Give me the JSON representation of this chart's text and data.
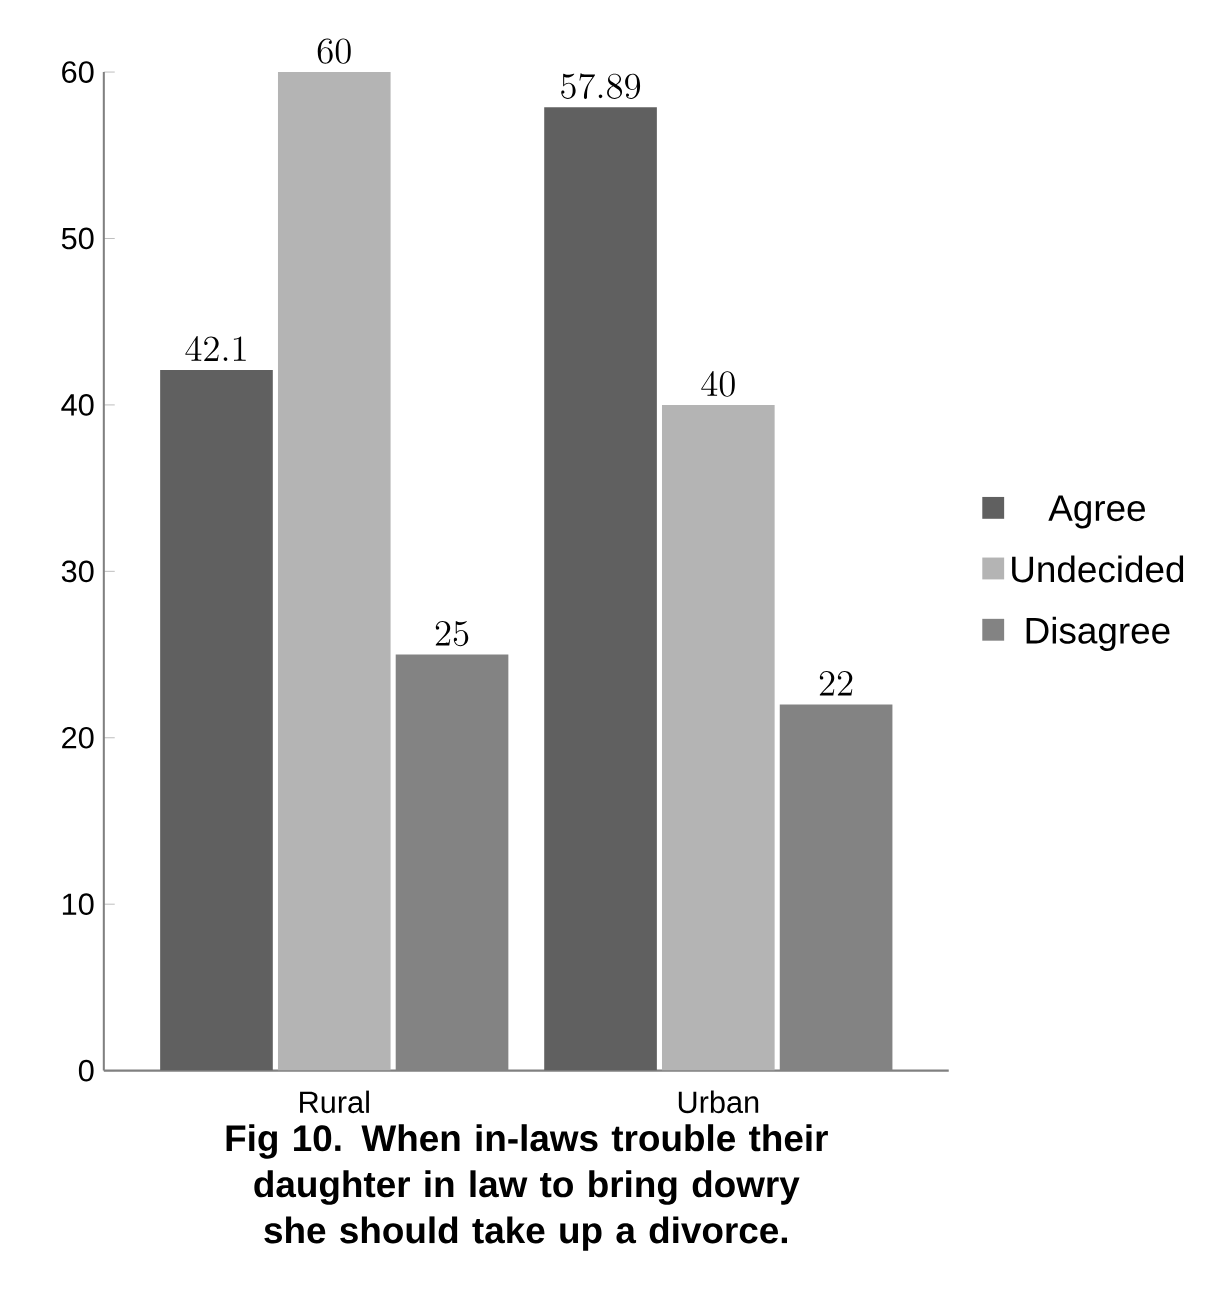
{
  "chart_data": {
    "type": "bar",
    "title": "Fig 10. When in-laws trouble their daughter in law to bring dowry she should take up a divorce.",
    "categories": [
      "Rural",
      "Urban"
    ],
    "series": [
      {
        "name": "Agree",
        "color": "#606060",
        "values": [
          42.1,
          57.89
        ]
      },
      {
        "name": "Undecided",
        "color": "#b4b4b4",
        "values": [
          60,
          40
        ]
      },
      {
        "name": "Disagree",
        "color": "#838383",
        "values": [
          25,
          22
        ]
      }
    ],
    "ylim": [
      0,
      60
    ],
    "yticks": [
      0,
      10,
      20,
      30,
      40,
      50,
      60
    ],
    "data_labels": true,
    "legend": "right",
    "grid": false
  }
}
